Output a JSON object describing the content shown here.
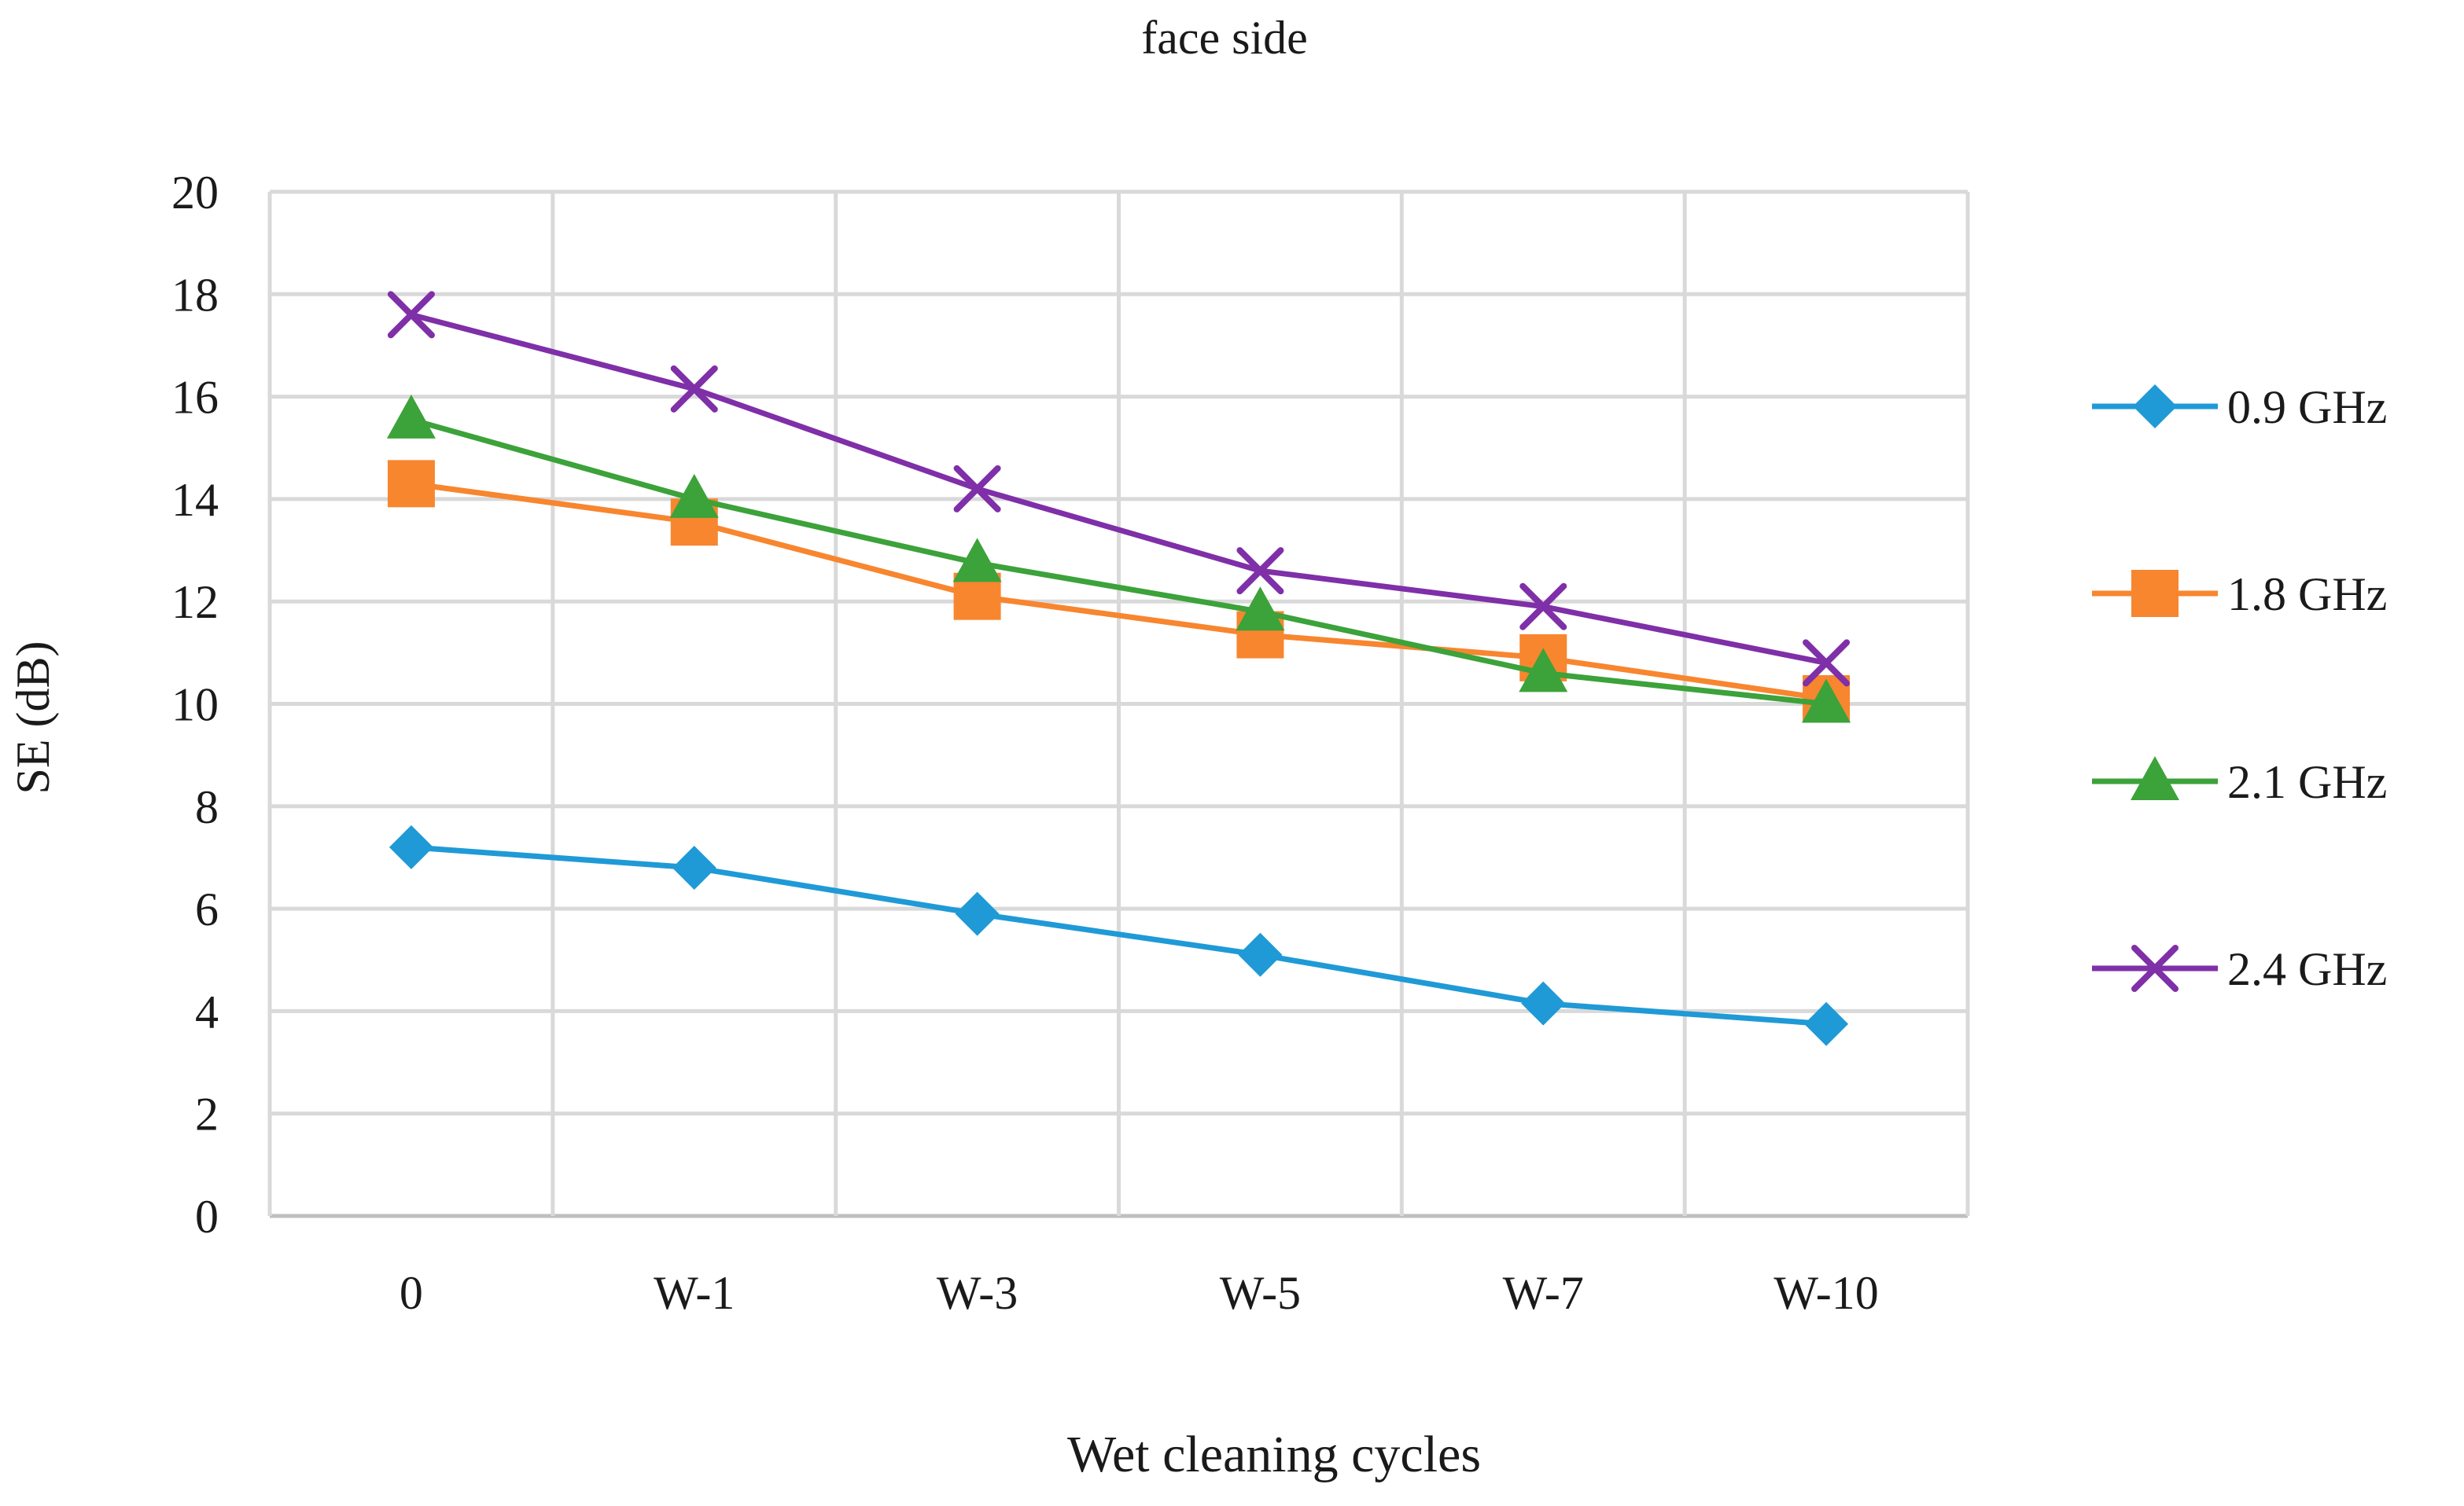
{
  "chart_data": {
    "type": "line",
    "title": "face side",
    "xlabel": "Wet cleaning cycles",
    "ylabel": "SE (dB)",
    "categories": [
      "0",
      "W-1",
      "W-3",
      "W-5",
      "W-7",
      "W-10"
    ],
    "ylim": [
      0,
      20
    ],
    "yticks": [
      0,
      2,
      4,
      6,
      8,
      10,
      12,
      14,
      16,
      18,
      20
    ],
    "grid": true,
    "legend_position": "right",
    "series": [
      {
        "name": "0.9 GHz",
        "color": "#1f9ad6",
        "marker": "diamond",
        "values": [
          7.2,
          6.8,
          5.9,
          5.1,
          4.15,
          3.75
        ]
      },
      {
        "name": "1.8 GHz",
        "color": "#f7862f",
        "marker": "square",
        "values": [
          14.3,
          13.55,
          12.1,
          11.35,
          10.9,
          10.1
        ]
      },
      {
        "name": "2.1 GHz",
        "color": "#3ca23a",
        "marker": "triangle",
        "values": [
          15.55,
          14.0,
          12.75,
          11.8,
          10.6,
          10.0
        ]
      },
      {
        "name": "2.4 GHz",
        "color": "#7f2fa8",
        "marker": "x",
        "values": [
          17.6,
          16.15,
          14.2,
          12.6,
          11.9,
          10.8
        ]
      }
    ]
  }
}
